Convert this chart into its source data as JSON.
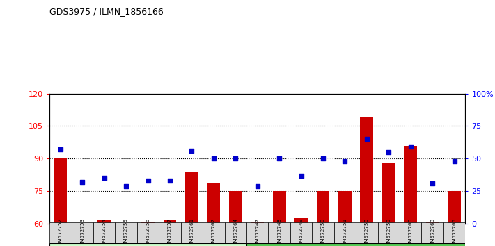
{
  "title": "GDS3975 / ILMN_1856166",
  "samples": [
    "GSM572752",
    "GSM572753",
    "GSM572754",
    "GSM572755",
    "GSM572756",
    "GSM572757",
    "GSM572761",
    "GSM572762",
    "GSM572764",
    "GSM572747",
    "GSM572748",
    "GSM572749",
    "GSM572750",
    "GSM572751",
    "GSM572758",
    "GSM572759",
    "GSM572760",
    "GSM572763",
    "GSM572765"
  ],
  "counts": [
    90,
    60,
    62,
    60,
    61,
    62,
    84,
    79,
    75,
    61,
    75,
    63,
    75,
    75,
    109,
    88,
    96,
    61,
    75
  ],
  "percentiles": [
    57,
    32,
    35,
    29,
    33,
    33,
    56,
    50,
    50,
    29,
    50,
    37,
    50,
    48,
    65,
    55,
    59,
    31,
    48
  ],
  "control_count": 9,
  "endometrioma_count": 10,
  "ylim_left": [
    60,
    120
  ],
  "ylim_right": [
    0,
    100
  ],
  "yticks_left": [
    60,
    75,
    90,
    105,
    120
  ],
  "yticks_right": [
    0,
    25,
    50,
    75,
    100
  ],
  "bar_color": "#cc0000",
  "dot_color": "#0000cc",
  "control_color": "#ccffcc",
  "endometrioma_color": "#55cc55",
  "plot_bg": "white"
}
